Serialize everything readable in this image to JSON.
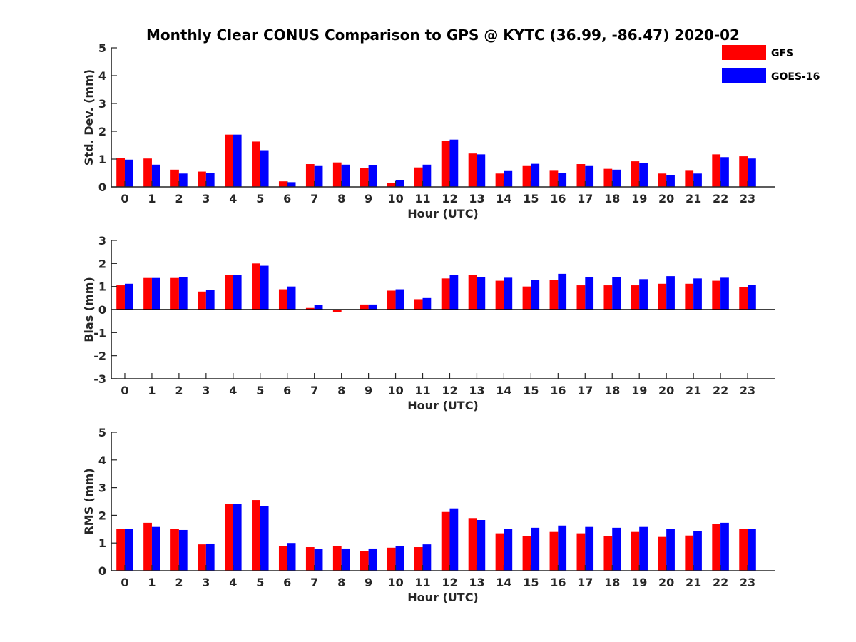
{
  "chart_data": [
    {
      "type": "bar",
      "title": "Monthly Clear CONUS Comparison to GPS @ KYTC (36.99, -86.47) 2020-02",
      "xlabel": "Hour (UTC)",
      "ylabel": "Std. Dev. (mm)",
      "ylim": [
        0,
        5
      ],
      "yticks": [
        "0",
        "1",
        "2",
        "3",
        "4",
        "5"
      ],
      "categories": [
        "0",
        "1",
        "2",
        "3",
        "4",
        "5",
        "6",
        "7",
        "8",
        "9",
        "10",
        "11",
        "12",
        "13",
        "14",
        "15",
        "16",
        "17",
        "18",
        "19",
        "20",
        "21",
        "22",
        "23"
      ],
      "legend": "top-right",
      "series": [
        {
          "name": "GFS",
          "color": "#ff0000",
          "values": [
            1.05,
            1.02,
            0.62,
            0.55,
            1.88,
            1.63,
            0.2,
            0.82,
            0.88,
            0.68,
            0.15,
            0.7,
            1.65,
            1.2,
            0.48,
            0.75,
            0.58,
            0.82,
            0.65,
            0.92,
            0.48,
            0.58,
            1.17,
            1.1
          ]
        },
        {
          "name": "GOES-16",
          "color": "#0000ff",
          "values": [
            0.98,
            0.8,
            0.48,
            0.5,
            1.88,
            1.32,
            0.17,
            0.75,
            0.8,
            0.78,
            0.25,
            0.8,
            1.7,
            1.17,
            0.57,
            0.83,
            0.5,
            0.75,
            0.62,
            0.85,
            0.42,
            0.48,
            1.07,
            1.02
          ]
        }
      ]
    },
    {
      "type": "bar",
      "xlabel": "Hour (UTC)",
      "ylabel": "Bias (mm)",
      "ylim": [
        -3,
        3
      ],
      "yticks": [
        "-3",
        "-2",
        "-1",
        "0",
        "1",
        "2",
        "3"
      ],
      "categories": [
        "0",
        "1",
        "2",
        "3",
        "4",
        "5",
        "6",
        "7",
        "8",
        "9",
        "10",
        "11",
        "12",
        "13",
        "14",
        "15",
        "16",
        "17",
        "18",
        "19",
        "20",
        "21",
        "22",
        "23"
      ],
      "series": [
        {
          "name": "GFS",
          "color": "#ff0000",
          "values": [
            1.05,
            1.37,
            1.37,
            0.78,
            1.5,
            2.0,
            0.88,
            0.07,
            -0.12,
            0.22,
            0.82,
            0.45,
            1.35,
            1.5,
            1.25,
            1.0,
            1.28,
            1.05,
            1.05,
            1.05,
            1.12,
            1.12,
            1.25,
            0.97
          ]
        },
        {
          "name": "GOES-16",
          "color": "#0000ff",
          "values": [
            1.12,
            1.37,
            1.4,
            0.85,
            1.5,
            1.9,
            1.0,
            0.2,
            -0.02,
            0.22,
            0.88,
            0.5,
            1.5,
            1.42,
            1.38,
            1.28,
            1.55,
            1.4,
            1.4,
            1.32,
            1.45,
            1.35,
            1.38,
            1.07
          ]
        }
      ]
    },
    {
      "type": "bar",
      "xlabel": "Hour (UTC)",
      "ylabel": "RMS (mm)",
      "ylim": [
        0,
        5
      ],
      "yticks": [
        "0",
        "1",
        "2",
        "3",
        "4",
        "5"
      ],
      "categories": [
        "0",
        "1",
        "2",
        "3",
        "4",
        "5",
        "6",
        "7",
        "8",
        "9",
        "10",
        "11",
        "12",
        "13",
        "14",
        "15",
        "16",
        "17",
        "18",
        "19",
        "20",
        "21",
        "22",
        "23"
      ],
      "series": [
        {
          "name": "GFS",
          "color": "#ff0000",
          "values": [
            1.5,
            1.73,
            1.5,
            0.95,
            2.4,
            2.55,
            0.9,
            0.85,
            0.9,
            0.7,
            0.83,
            0.85,
            2.12,
            1.9,
            1.35,
            1.25,
            1.4,
            1.35,
            1.25,
            1.4,
            1.22,
            1.27,
            1.7,
            1.5
          ]
        },
        {
          "name": "GOES-16",
          "color": "#0000ff",
          "values": [
            1.5,
            1.58,
            1.47,
            0.98,
            2.4,
            2.32,
            1.0,
            0.78,
            0.8,
            0.8,
            0.9,
            0.95,
            2.25,
            1.83,
            1.5,
            1.55,
            1.63,
            1.58,
            1.55,
            1.58,
            1.5,
            1.42,
            1.73,
            1.5
          ]
        }
      ]
    }
  ]
}
